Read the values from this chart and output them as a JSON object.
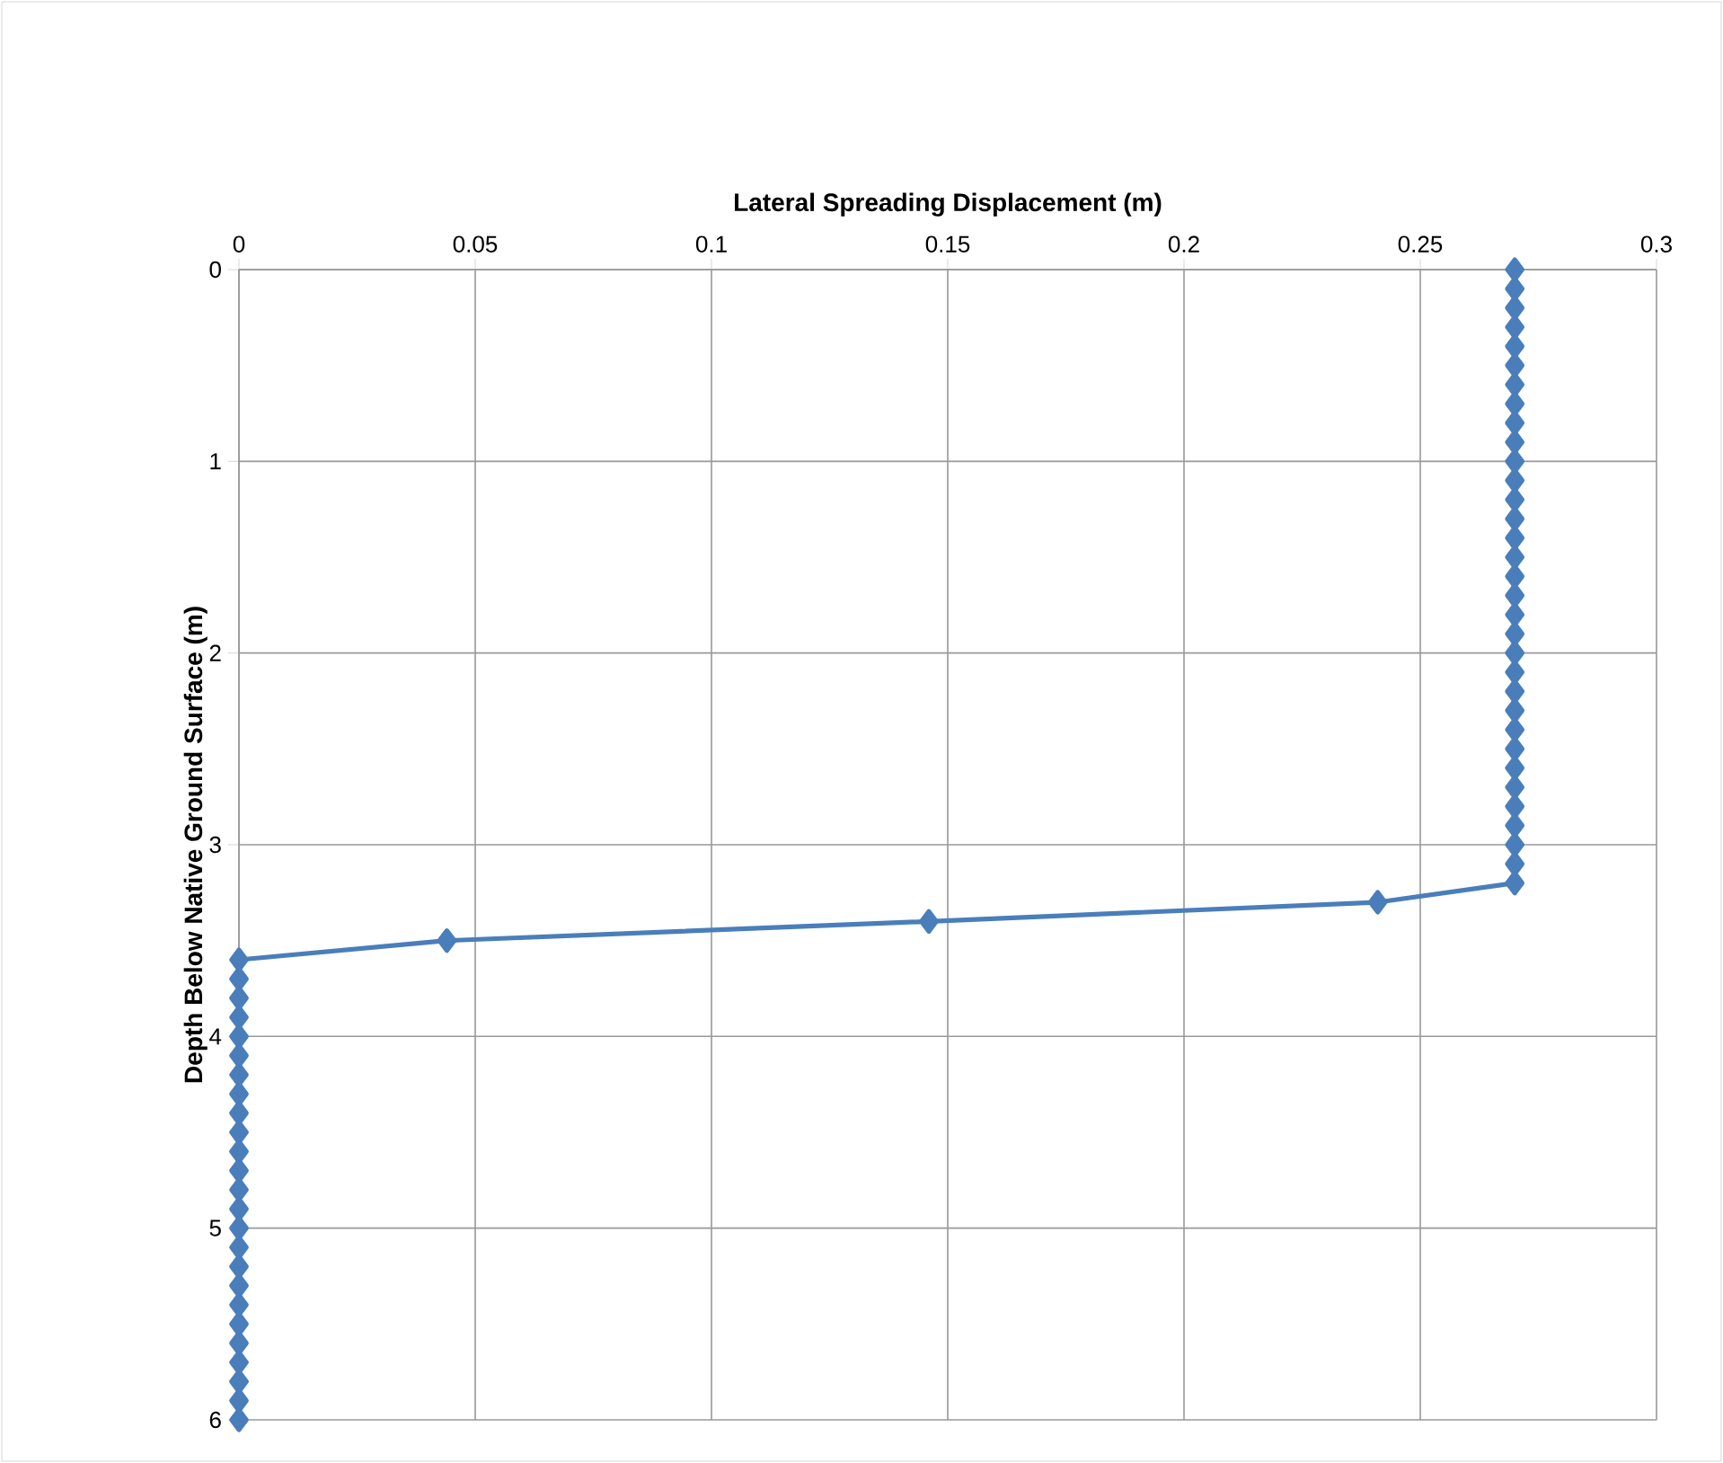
{
  "chart_data": {
    "type": "line",
    "xlabel": "Lateral Spreading  Displacement  (m)",
    "ylabel": "Depth Below  Native Ground Surface  (m)",
    "x": [
      0.27,
      0.27,
      0.27,
      0.27,
      0.27,
      0.27,
      0.27,
      0.27,
      0.27,
      0.27,
      0.27,
      0.27,
      0.27,
      0.27,
      0.27,
      0.27,
      0.27,
      0.27,
      0.27,
      0.27,
      0.27,
      0.27,
      0.27,
      0.27,
      0.27,
      0.27,
      0.27,
      0.27,
      0.27,
      0.27,
      0.27,
      0.27,
      0.27,
      0.241,
      0.146,
      0.044,
      0,
      0,
      0,
      0,
      0,
      0,
      0,
      0,
      0,
      0,
      0,
      0,
      0,
      0,
      0,
      0,
      0,
      0,
      0,
      0,
      0,
      0,
      0,
      0,
      0
    ],
    "values": [
      0,
      0.1,
      0.2,
      0.3,
      0.4,
      0.5,
      0.6,
      0.7,
      0.8,
      0.9,
      1.0,
      1.1,
      1.2,
      1.3,
      1.4,
      1.5,
      1.6,
      1.7,
      1.8,
      1.9,
      2.0,
      2.1,
      2.2,
      2.3,
      2.4,
      2.5,
      2.6,
      2.7,
      2.8,
      2.9,
      3.0,
      3.1,
      3.2,
      3.3,
      3.4,
      3.5,
      3.6,
      3.7,
      3.8,
      3.9,
      4.0,
      4.1,
      4.2,
      4.3,
      4.4,
      4.5,
      4.6,
      4.7,
      4.8,
      4.9,
      5.0,
      5.1,
      5.2,
      5.3,
      5.4,
      5.5,
      5.6,
      5.7,
      5.8,
      5.9,
      6.0
    ],
    "color": "#4a7ebb",
    "marker": "diamond",
    "line_style": "solid",
    "grid": true,
    "xlim": [
      0,
      0.3
    ],
    "xticks": [
      0,
      0.05,
      0.1,
      0.15,
      0.2,
      0.25,
      0.3
    ],
    "ylim": [
      6,
      0
    ],
    "yticks": [
      0,
      1,
      2,
      3,
      4,
      5,
      6
    ]
  }
}
